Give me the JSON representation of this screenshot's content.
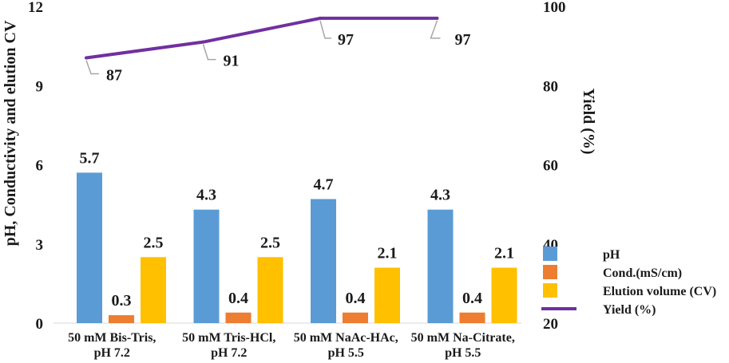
{
  "chart_data": {
    "type": "bar",
    "categories": [
      [
        "50 mM Bis-Tris,",
        "pH 7.2"
      ],
      [
        "50 mM Tris-HCl,",
        "pH 7.2"
      ],
      [
        "50 mM NaAc-HAc,",
        "pH 5.5"
      ],
      [
        "50 mM Na-Citrate,",
        "pH 5.5"
      ]
    ],
    "series": [
      {
        "name": "pH",
        "axis": "left",
        "kind": "bar",
        "color": "#5b9bd5",
        "values": [
          5.7,
          4.3,
          4.7,
          4.3
        ],
        "labels": [
          "5.7",
          "4.3",
          "4.7",
          "4.3"
        ]
      },
      {
        "name": "Cond.(mS/cm)",
        "axis": "left",
        "kind": "bar",
        "color": "#ed7d31",
        "values": [
          0.3,
          0.4,
          0.4,
          0.4
        ],
        "labels": [
          "0.3",
          "0.4",
          "0.4",
          "0.4"
        ]
      },
      {
        "name": "Elution volume (CV)",
        "axis": "left",
        "kind": "bar",
        "color": "#ffc000",
        "values": [
          2.5,
          2.5,
          2.1,
          2.1
        ],
        "labels": [
          "2.5",
          "2.5",
          "2.1",
          "2.1"
        ]
      },
      {
        "name": "Yield (%)",
        "axis": "right",
        "kind": "line",
        "color": "#7030a0",
        "values": [
          87,
          91,
          97,
          97
        ],
        "labels": [
          "87",
          "91",
          "97",
          "97"
        ]
      }
    ],
    "ylabel": "pH, Conductivity and elution CV",
    "ylim": [
      0,
      12
    ],
    "yticks": [
      "0",
      "3",
      "6",
      "9",
      "12"
    ],
    "y2label": "Yield (%)",
    "y2lim": [
      20,
      100
    ],
    "y2ticks": [
      "20",
      "40",
      "60",
      "80",
      "100"
    ],
    "grid": false,
    "legend": "bottom-right"
  }
}
